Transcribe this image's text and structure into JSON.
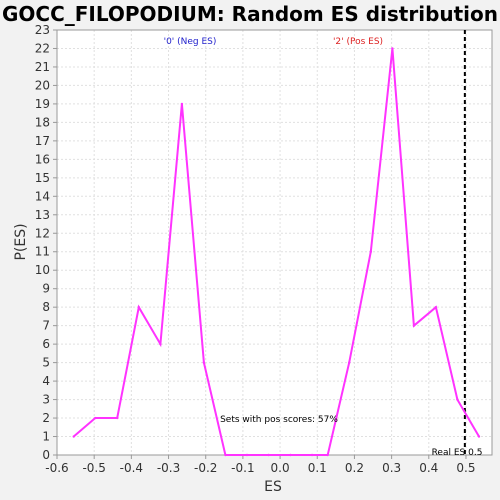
{
  "chart_data": {
    "type": "line",
    "title": "GOCC_FILOPODIUM: Random ES distribution",
    "xlabel": "ES",
    "ylabel": "P(ES)",
    "xlim": [
      -0.6,
      0.57
    ],
    "ylim": [
      0,
      23
    ],
    "x_ticks": [
      "-0.6",
      "-0.5",
      "-0.4",
      "-0.3",
      "-0.2",
      "-0.1",
      "0.0",
      "0.1",
      "0.2",
      "0.3",
      "0.4",
      "0.5"
    ],
    "y_ticks": [
      "0",
      "1",
      "2",
      "3",
      "4",
      "5",
      "6",
      "7",
      "8",
      "9",
      "10",
      "11",
      "12",
      "13",
      "14",
      "15",
      "16",
      "17",
      "18",
      "19",
      "20",
      "21",
      "22",
      "23"
    ],
    "grid": true,
    "series": [
      {
        "color": "#ff33ff",
        "x": [
          -0.555,
          -0.497,
          -0.438,
          -0.38,
          -0.322,
          -0.264,
          -0.205,
          -0.147,
          -0.089,
          -0.031,
          0.028,
          0.086,
          0.128,
          0.186,
          0.244,
          0.302,
          0.36,
          0.419,
          0.477,
          0.535
        ],
        "y": [
          1,
          2,
          2,
          8,
          6,
          19,
          5,
          0,
          0,
          0,
          0,
          0,
          0,
          5,
          11,
          22,
          7,
          8,
          3,
          1
        ]
      }
    ],
    "annotations": {
      "neg_label": "'0' (Neg ES)",
      "neg_color": "#2222cc",
      "pos_label": "'2' (Pos ES)",
      "pos_color": "#dd2222",
      "pos_scores_text": "Sets with pos scores: 57%",
      "real_es_label": "Real ES 0.5",
      "real_es_value": 0.497
    }
  }
}
